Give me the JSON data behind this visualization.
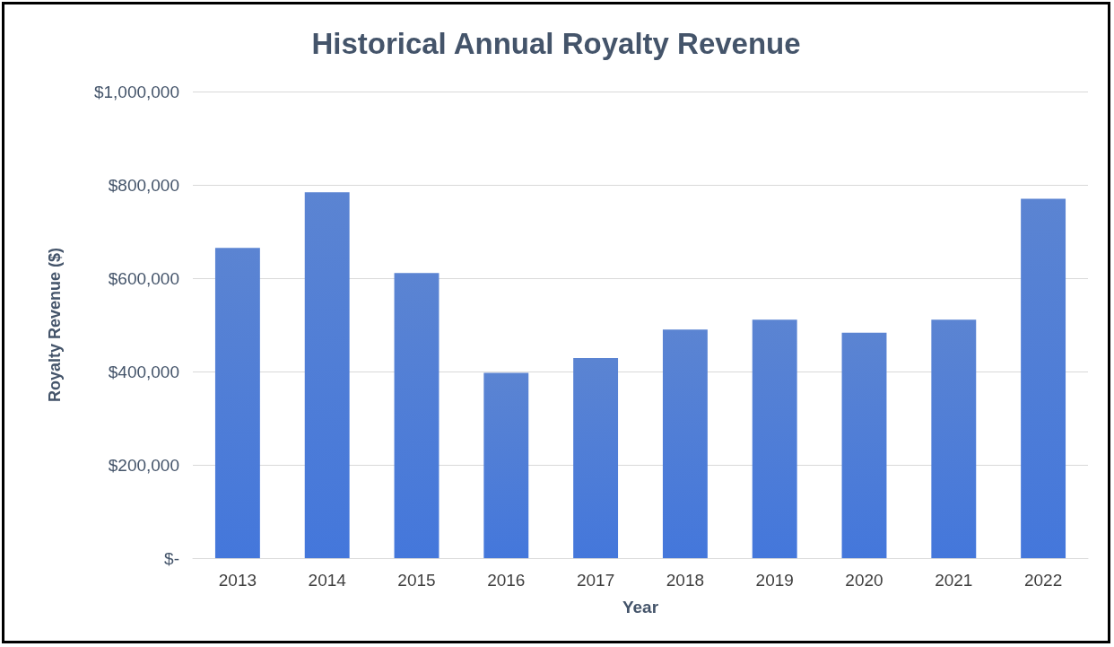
{
  "chart_data": {
    "type": "bar",
    "title": "Historical Annual Royalty Revenue",
    "xlabel": "Year",
    "ylabel": "Royalty Revenue ($)",
    "categories": [
      "2013",
      "2014",
      "2015",
      "2016",
      "2017",
      "2018",
      "2019",
      "2020",
      "2021",
      "2022"
    ],
    "values": [
      665000,
      784000,
      611000,
      397000,
      429000,
      490000,
      511000,
      483000,
      511000,
      770000
    ],
    "color": "#3f6fcb",
    "ylim": [
      0,
      1000000
    ],
    "yticks": [
      {
        "value": 0,
        "label": "$-"
      },
      {
        "value": 200000,
        "label": "$200,000"
      },
      {
        "value": 400000,
        "label": "$400,000"
      },
      {
        "value": 600000,
        "label": "$600,000"
      },
      {
        "value": 800000,
        "label": "$800,000"
      },
      {
        "value": 1000000,
        "label": "$1,000,000"
      }
    ],
    "grid": "y"
  }
}
